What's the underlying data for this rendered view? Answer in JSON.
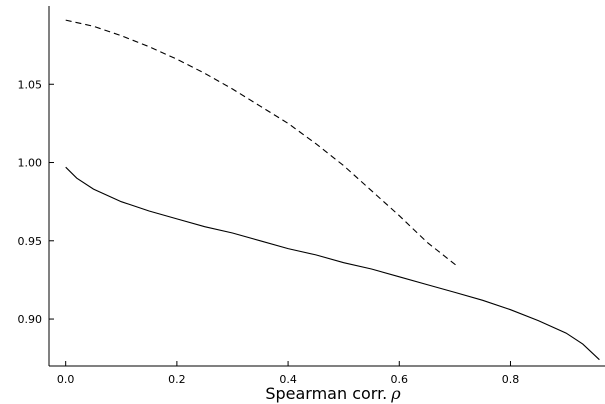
{
  "chart_data": {
    "type": "line",
    "title": "",
    "xlabel": "Spearman corr.",
    "xlabel_symbol": "ρ",
    "ylabel": "",
    "xlim": [
      -0.03,
      0.97
    ],
    "ylim": [
      0.87,
      1.1
    ],
    "grid": false,
    "legend": "none",
    "xticks": [
      0.0,
      0.2,
      0.4,
      0.6,
      0.8
    ],
    "xtick_labels": [
      "0.0",
      "0.2",
      "0.4",
      "0.6",
      "0.8"
    ],
    "yticks": [
      0.9,
      0.95,
      1.0,
      1.05
    ],
    "ytick_labels": [
      "0.90",
      "0.95",
      "1.00",
      "1.05"
    ],
    "series": [
      {
        "style": "solid",
        "color": "#000000",
        "x": [
          0.0,
          0.02,
          0.05,
          0.1,
          0.15,
          0.2,
          0.25,
          0.3,
          0.35,
          0.4,
          0.45,
          0.5,
          0.55,
          0.6,
          0.65,
          0.7,
          0.75,
          0.8,
          0.85,
          0.9,
          0.93,
          0.96
        ],
        "y": [
          0.997,
          0.99,
          0.983,
          0.975,
          0.969,
          0.964,
          0.959,
          0.955,
          0.95,
          0.945,
          0.941,
          0.936,
          0.932,
          0.927,
          0.922,
          0.917,
          0.912,
          0.906,
          0.899,
          0.891,
          0.884,
          0.874
        ]
      },
      {
        "style": "dashed",
        "color": "#000000",
        "x": [
          0.0,
          0.05,
          0.1,
          0.15,
          0.2,
          0.25,
          0.3,
          0.35,
          0.4,
          0.45,
          0.5,
          0.55,
          0.6,
          0.65,
          0.7,
          0.705
        ],
        "y": [
          1.091,
          1.087,
          1.081,
          1.074,
          1.066,
          1.057,
          1.047,
          1.036,
          1.025,
          1.012,
          0.998,
          0.982,
          0.966,
          0.949,
          0.935,
          0.934
        ]
      }
    ]
  }
}
